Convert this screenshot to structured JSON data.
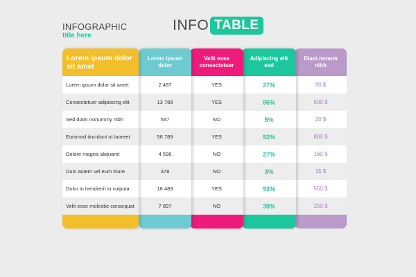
{
  "title": {
    "main": "INFOGRAPHIC",
    "sub": "title here"
  },
  "logo": {
    "left": "INFO",
    "right": "TABLE"
  },
  "colors": {
    "yellow": "#f2be2b",
    "teal": "#6ccad0",
    "pink": "#ee1b7b",
    "green": "#1cc79e",
    "purple": "#b99ac8"
  },
  "columns": [
    {
      "header": "Lorem ipsum dolor sit amet"
    },
    {
      "header": "Lorem ipsum dolor"
    },
    {
      "header": "Velit esse consectetuer"
    },
    {
      "header": "Adipiscing elit sed"
    },
    {
      "header": "Diam nonum nibh"
    }
  ],
  "rows": [
    [
      "Lorem ipsum dolor sit amet",
      "2 487",
      "YES",
      "27%",
      "90 $"
    ],
    [
      "Consectetuer adipiscing elit",
      "13 789",
      "YES",
      "86%",
      "500 $"
    ],
    [
      "Sed diam nonummy nibh",
      "547",
      "NO",
      "5%",
      "20 $"
    ],
    [
      "Euismod tincidunt ut laoreet",
      "56 789",
      "YES",
      "92%",
      "800 $"
    ],
    [
      "Dolore magna aliquamt",
      "4 598",
      "NO",
      "27%",
      "160 $"
    ],
    [
      "Duis autem vel eum iriure",
      "378",
      "NO",
      "3%",
      "15 $"
    ],
    [
      "Dolor in hendrerit in vulputa",
      "16 489",
      "YES",
      "93%",
      "550 $"
    ],
    [
      "Velit esse molestie consequat",
      "7 897",
      "NO",
      "38%",
      "250 $"
    ]
  ]
}
